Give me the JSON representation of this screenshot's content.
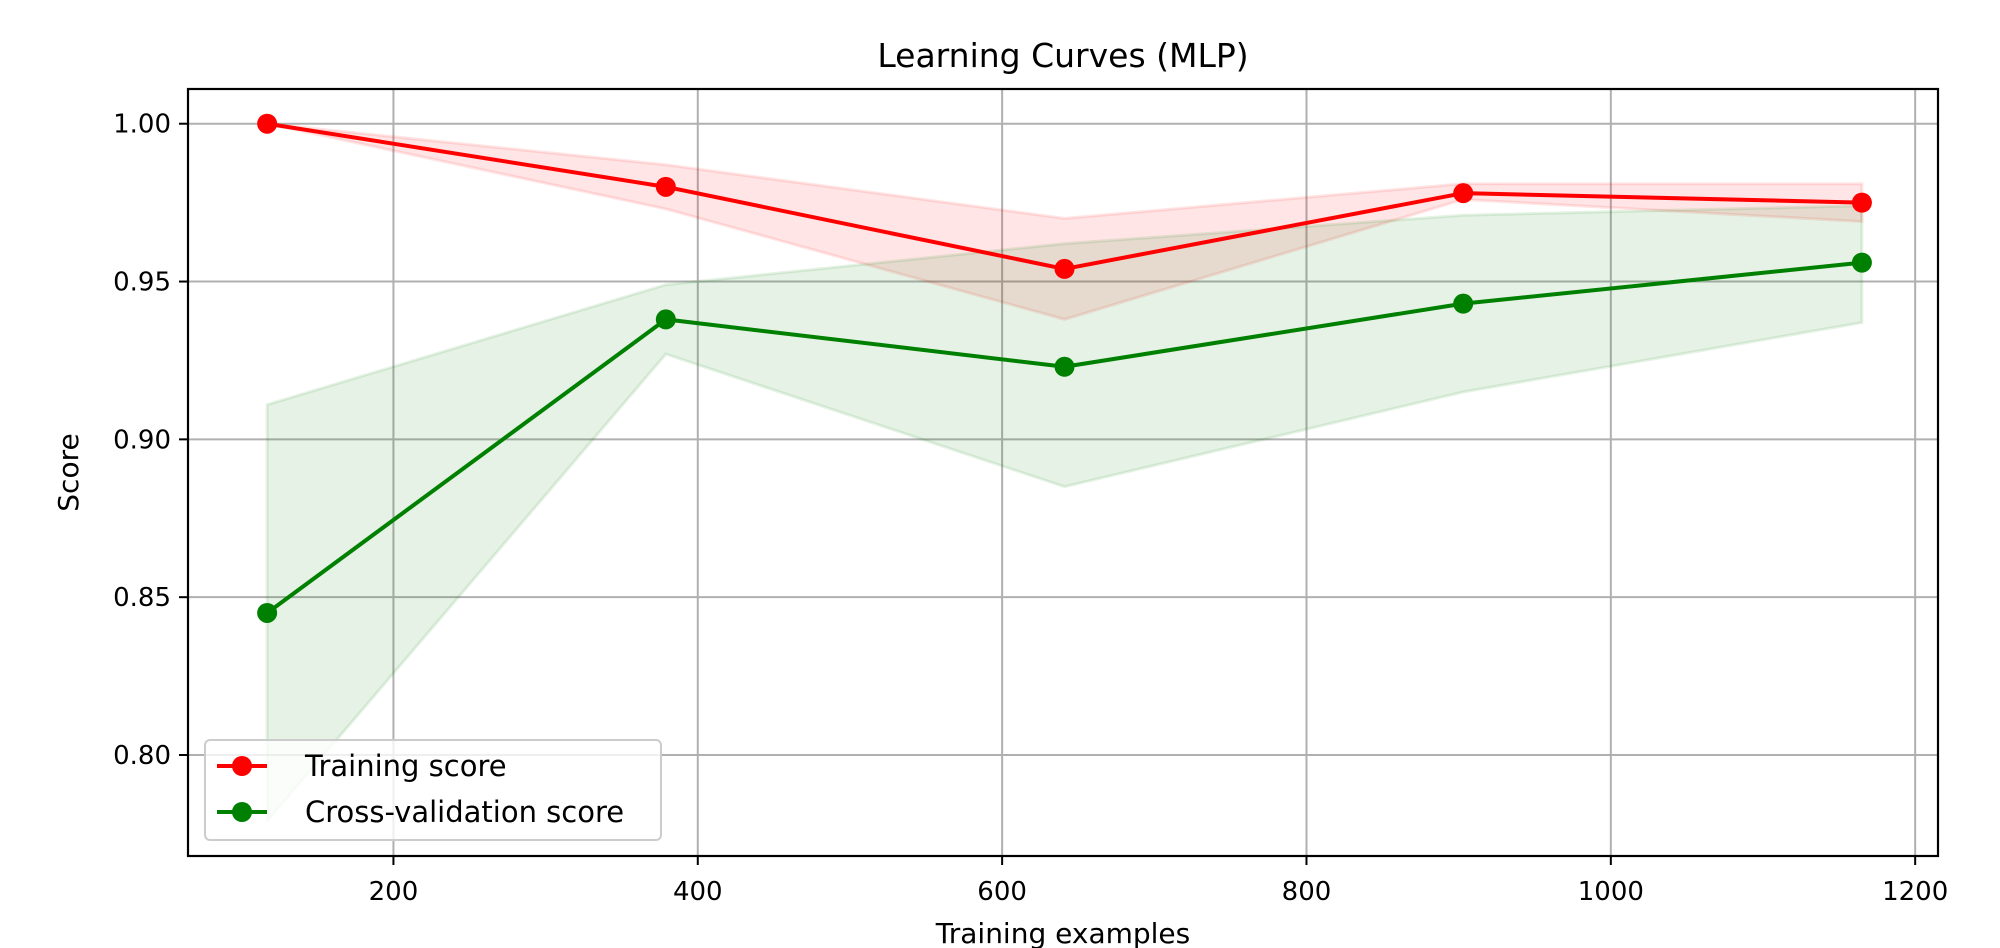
{
  "chart_data": {
    "type": "line",
    "title": "Learning Curves (MLP)",
    "xlabel": "Training examples",
    "ylabel": "Score",
    "xlim": [
      65,
      1215
    ],
    "ylim": [
      0.768,
      1.011
    ],
    "xticks": [
      200,
      400,
      600,
      800,
      1000,
      1200
    ],
    "xtick_labels": [
      "200",
      "400",
      "600",
      "800",
      "1000",
      "1200"
    ],
    "yticks": [
      0.8,
      0.85,
      0.9,
      0.95,
      1.0
    ],
    "ytick_labels": [
      "0.80",
      "0.85",
      "0.90",
      "0.95",
      "1.00"
    ],
    "grid": true,
    "legend_position": "lower-left",
    "x": [
      117,
      379,
      641,
      903,
      1165
    ],
    "series": [
      {
        "name": "Training score",
        "color": "#ff0000",
        "band_color": "#ff0000",
        "values": [
          1.0,
          0.98,
          0.954,
          0.978,
          0.975
        ],
        "lower": [
          1.0,
          0.973,
          0.938,
          0.976,
          0.969
        ],
        "upper": [
          1.0,
          0.987,
          0.97,
          0.981,
          0.981
        ]
      },
      {
        "name": "Cross-validation score",
        "color": "#008000",
        "band_color": "#008000",
        "values": [
          0.845,
          0.938,
          0.923,
          0.943,
          0.956
        ],
        "lower": [
          0.779,
          0.927,
          0.885,
          0.915,
          0.937
        ],
        "upper": [
          0.911,
          0.949,
          0.962,
          0.971,
          0.974
        ]
      }
    ]
  }
}
